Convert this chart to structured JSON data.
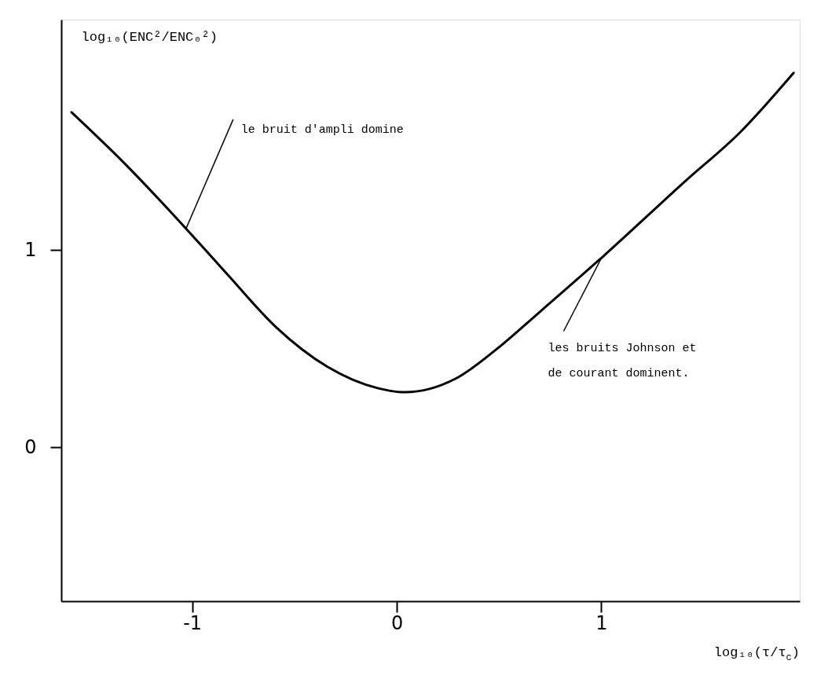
{
  "chart_data": {
    "type": "line",
    "xlabel": "log₁₀(τ/τ$_{c}$)",
    "ylabel": "log₁₀(ENC²/ENC₀²)",
    "series": [
      {
        "color": "#000000",
        "x": [
          -1.59,
          -1.33,
          -1.03,
          -0.83,
          -0.59,
          -0.34,
          -0.09,
          0.04,
          0.29,
          0.49,
          0.68,
          1.01,
          1.41,
          1.68,
          1.94
        ],
        "values": [
          1.7,
          1.44,
          1.11,
          0.88,
          0.61,
          0.41,
          0.3,
          0.28,
          0.35,
          0.5,
          0.67,
          0.97,
          1.35,
          1.6,
          1.9
        ]
      }
    ],
    "xlim": [
      -1.64,
      1.97
    ],
    "ylim": [
      -0.78,
      2.17
    ],
    "xticks": [
      -1,
      0,
      1
    ],
    "yticks": [
      0,
      1
    ],
    "annotations": [
      {
        "text": "le bruit d'ampli domine",
        "x": -1.03,
        "y": 1.11
      },
      {
        "text": "les bruits Johnson et\nde courant dominent.",
        "x": 1.0,
        "y": 0.96
      }
    ],
    "grid": false,
    "marker": "none",
    "line_style": "solid"
  }
}
